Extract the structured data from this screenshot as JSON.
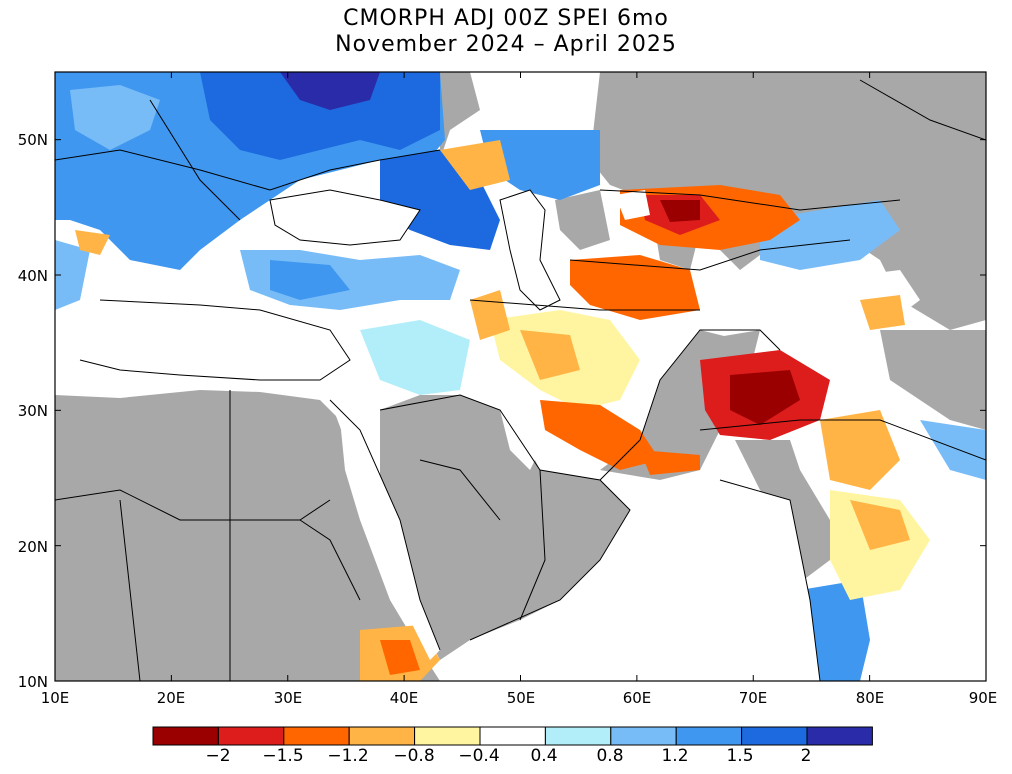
{
  "title": "CMORPH ADJ 00Z SPEI 6mo",
  "subtitle": "November 2024 – April 2025",
  "x_ticks": [
    "10E",
    "20E",
    "30E",
    "40E",
    "50E",
    "60E",
    "70E",
    "80E",
    "90E"
  ],
  "y_ticks": [
    "50N",
    "40N",
    "30N",
    "20N",
    "10N"
  ],
  "colorbar": {
    "colors": [
      "#9b0000",
      "#dd1c1c",
      "#ff6600",
      "#ffb445",
      "#fff5a0",
      "#ffffff",
      "#b2eefa",
      "#78bcf7",
      "#3f97f0",
      "#1d6ae0",
      "#2a2ba8"
    ],
    "labels": [
      "−2",
      "−1.5",
      "−1.2",
      "−0.8",
      "−0.4",
      "0.4",
      "0.8",
      "1.2",
      "1.5",
      "2"
    ]
  },
  "background_colors": {
    "no_data": "#a8a8a8",
    "water": "#ffffff"
  }
}
